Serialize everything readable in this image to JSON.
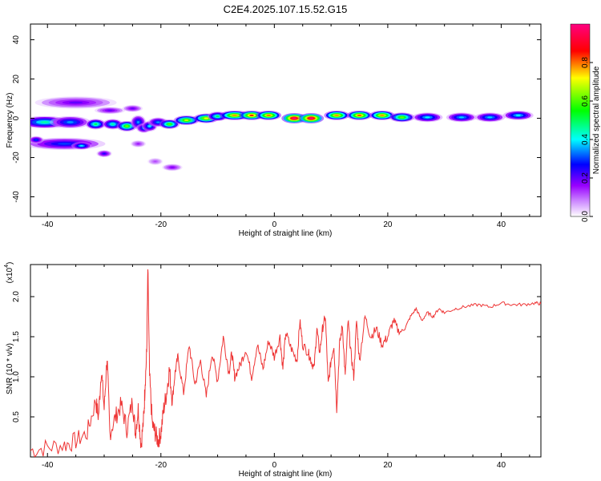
{
  "title": "C2E4.2025.107.15.52.G15",
  "chart_data": [
    {
      "type": "heatmap",
      "xlabel": "Height of straight line (km)",
      "ylabel": "Frequency (Hz)",
      "xlim": [
        -43,
        47
      ],
      "ylim": [
        -50,
        48
      ],
      "xticks": [
        -40,
        -20,
        0,
        20,
        40
      ],
      "yticks": [
        -40,
        -20,
        0,
        20,
        40
      ],
      "colorbar": {
        "label": "Normalized spectral amplitude",
        "range": [
          0,
          1
        ],
        "ticks": [
          0.0,
          0.2,
          0.4,
          0.6,
          0.8
        ],
        "colors": [
          "#ffffff",
          "#9900ff",
          "#0000ff",
          "#00ffff",
          "#00ff00",
          "#ffff00",
          "#ff0000",
          "#ff0080"
        ]
      },
      "blobs": [
        {
          "x": -40.5,
          "f": -2,
          "w": 5,
          "h": 2.6,
          "a": 0.45
        },
        {
          "x": -36,
          "f": -2,
          "w": 4,
          "h": 2.6,
          "a": 0.35
        },
        {
          "x": -35,
          "f": 8,
          "w": 8,
          "h": 2.6,
          "a": 0.2
        },
        {
          "x": -37,
          "f": -13,
          "w": 8,
          "h": 2.6,
          "a": 0.3
        },
        {
          "x": -34,
          "f": -14,
          "w": 2,
          "h": 1.6,
          "a": 0.4
        },
        {
          "x": -42,
          "f": -11,
          "w": 1.5,
          "h": 1.6,
          "a": 0.3
        },
        {
          "x": -31.5,
          "f": -3,
          "w": 2,
          "h": 2.2,
          "a": 0.5
        },
        {
          "x": -28.5,
          "f": -3,
          "w": 2,
          "h": 2.2,
          "a": 0.45
        },
        {
          "x": -26,
          "f": -4,
          "w": 2,
          "h": 2.2,
          "a": 0.62
        },
        {
          "x": -24,
          "f": -2,
          "w": 1.5,
          "h": 3,
          "a": 0.35
        },
        {
          "x": -23,
          "f": -5,
          "w": 1.5,
          "h": 2,
          "a": 0.35
        },
        {
          "x": -22,
          "f": -4,
          "w": 1.5,
          "h": 2.2,
          "a": 0.4
        },
        {
          "x": -29,
          "f": 4,
          "w": 3,
          "h": 1.5,
          "a": 0.2
        },
        {
          "x": -25,
          "f": 5,
          "w": 2,
          "h": 1.5,
          "a": 0.2
        },
        {
          "x": -24,
          "f": -13,
          "w": 1.5,
          "h": 1.5,
          "a": 0.15
        },
        {
          "x": -20.5,
          "f": -2,
          "w": 2,
          "h": 2,
          "a": 0.35
        },
        {
          "x": -18.5,
          "f": -3,
          "w": 2,
          "h": 2,
          "a": 0.6
        },
        {
          "x": -15.5,
          "f": -1,
          "w": 2.5,
          "h": 2,
          "a": 0.68
        },
        {
          "x": -12,
          "f": 0,
          "w": 2.5,
          "h": 2,
          "a": 0.72
        },
        {
          "x": -10,
          "f": 1,
          "w": 2,
          "h": 2,
          "a": 0.5
        },
        {
          "x": -7,
          "f": 1.5,
          "w": 3,
          "h": 2,
          "a": 0.78
        },
        {
          "x": -4,
          "f": 1.5,
          "w": 2.5,
          "h": 2,
          "a": 0.85
        },
        {
          "x": -1,
          "f": 1.5,
          "w": 2.5,
          "h": 2,
          "a": 0.8
        },
        {
          "x": 3.5,
          "f": 0,
          "w": 2.5,
          "h": 2.2,
          "a": 1.0
        },
        {
          "x": 6.5,
          "f": 0,
          "w": 2.5,
          "h": 2.2,
          "a": 1.0
        },
        {
          "x": 11,
          "f": 1.5,
          "w": 2.5,
          "h": 2,
          "a": 0.78
        },
        {
          "x": 15,
          "f": 1.5,
          "w": 2.5,
          "h": 2,
          "a": 0.82
        },
        {
          "x": 19,
          "f": 1.5,
          "w": 2.5,
          "h": 2,
          "a": 0.78
        },
        {
          "x": 22.5,
          "f": 0.5,
          "w": 2.5,
          "h": 2,
          "a": 0.62
        },
        {
          "x": 27,
          "f": 0.5,
          "w": 3,
          "h": 2,
          "a": 0.4
        },
        {
          "x": 33,
          "f": 0.5,
          "w": 3,
          "h": 2,
          "a": 0.38
        },
        {
          "x": 38,
          "f": 0.5,
          "w": 3,
          "h": 2,
          "a": 0.38
        },
        {
          "x": 43,
          "f": 1.5,
          "w": 3,
          "h": 2,
          "a": 0.4
        },
        {
          "x": -18,
          "f": -25,
          "w": 2,
          "h": 1.5,
          "a": 0.18
        },
        {
          "x": -21,
          "f": -22,
          "w": 1.5,
          "h": 1.5,
          "a": 0.12
        },
        {
          "x": -30,
          "f": -18,
          "w": 1.5,
          "h": 1.5,
          "a": 0.25
        }
      ]
    },
    {
      "type": "line",
      "xlabel": "Height of straight line (km)",
      "ylabel": "SNR (10 * v/v)",
      "yscale_label": "(x10",
      "yscale_exp": "4",
      "xlim": [
        -43,
        47
      ],
      "ylim": [
        0,
        2.4
      ],
      "xticks": [
        -40,
        -20,
        0,
        20,
        40
      ],
      "yticks": [
        0.5,
        1.0,
        1.5,
        2.0
      ],
      "ytick_labels": [
        "0.5",
        "1.0",
        "1.5",
        "2.0"
      ],
      "color": "#ee3333",
      "x": [
        -43,
        -40,
        -37,
        -35,
        -33,
        -31.5,
        -31,
        -30.5,
        -30,
        -29.5,
        -29,
        -28,
        -27,
        -26,
        -25,
        -24.5,
        -24,
        -23.5,
        -23,
        -22.8,
        -22.5,
        -22.3,
        -22,
        -21.5,
        -21,
        -20.5,
        -20,
        -19.5,
        -19,
        -18.5,
        -18,
        -17.5,
        -17,
        -16,
        -15,
        -14,
        -13,
        -12,
        -11,
        -10,
        -9,
        -8,
        -7.5,
        -7,
        -6,
        -5,
        -4,
        -3,
        -2,
        -1,
        0,
        1,
        1.5,
        2,
        3,
        4,
        4.5,
        5,
        6,
        6.5,
        7,
        7.5,
        8,
        8.5,
        9,
        9.5,
        10,
        10.5,
        11,
        11.5,
        12,
        12.5,
        13,
        13.5,
        14,
        14.5,
        15,
        16,
        17,
        18,
        19,
        20,
        21,
        22,
        23,
        24,
        25,
        26,
        27,
        28,
        29,
        30,
        32,
        34,
        36,
        38,
        40,
        42,
        44,
        46,
        47
      ],
      "y": [
        0.08,
        0.12,
        0.15,
        0.2,
        0.3,
        0.7,
        0.5,
        1.1,
        0.6,
        1.25,
        0.3,
        0.5,
        0.65,
        0.35,
        0.7,
        0.3,
        0.6,
        0.15,
        0.5,
        0.9,
        1.3,
        2.35,
        1.0,
        0.4,
        0.3,
        0.2,
        0.3,
        0.6,
        0.8,
        1.1,
        0.7,
        1.05,
        1.25,
        0.8,
        1.4,
        0.9,
        1.2,
        0.75,
        1.3,
        0.95,
        1.5,
        1.05,
        1.3,
        1.0,
        1.15,
        1.35,
        1.0,
        1.4,
        1.1,
        1.45,
        1.25,
        1.5,
        1.1,
        1.55,
        1.35,
        1.2,
        1.7,
        1.4,
        1.3,
        1.2,
        1.1,
        1.6,
        1.3,
        1.6,
        1.75,
        0.9,
        1.2,
        1.4,
        0.6,
        1.4,
        1.65,
        1.0,
        1.7,
        1.3,
        1.0,
        1.7,
        1.2,
        1.75,
        1.5,
        1.6,
        1.4,
        1.5,
        1.7,
        1.55,
        1.6,
        1.75,
        1.85,
        1.7,
        1.8,
        1.75,
        1.85,
        1.8,
        1.85,
        1.88,
        1.9,
        1.87,
        1.92,
        1.9,
        1.9,
        1.92,
        1.91
      ]
    }
  ]
}
